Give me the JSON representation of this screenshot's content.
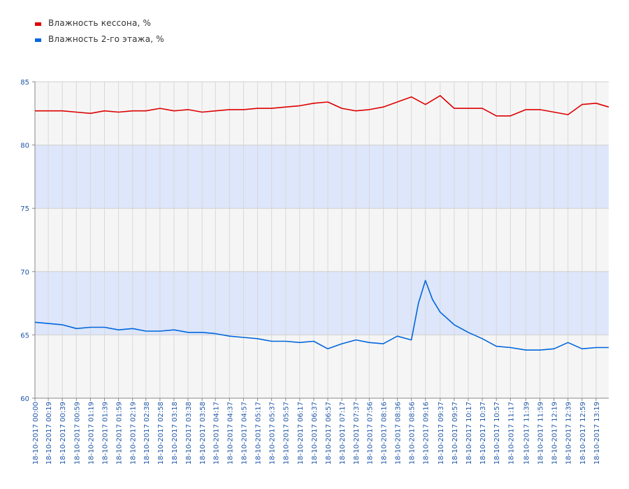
{
  "legend": {
    "items": [
      {
        "label": "Влажность кессона, %",
        "color": "#dd0000"
      },
      {
        "label": "Влажность 2-го этажа, %",
        "color": "#0066dd"
      }
    ]
  },
  "chart_data": {
    "type": "line",
    "ylim": [
      60,
      85
    ],
    "yticks": [
      60,
      65,
      70,
      75,
      80,
      85
    ],
    "bands": [
      {
        "from": 65,
        "to": 70,
        "color": "#dde6fa"
      },
      {
        "from": 75,
        "to": 80,
        "color": "#dde6fa"
      }
    ],
    "background": "#f5f5f5",
    "grid": true,
    "xlim_minutes": [
      0,
      817
    ],
    "x_tick_labels": [
      "18-10-2017 00:00",
      "18-10-2017 00:19",
      "18-10-2017 00:39",
      "18-10-2017 00:59",
      "18-10-2017 01:19",
      "18-10-2017 01:39",
      "18-10-2017 01:59",
      "18-10-2017 02:19",
      "18-10-2017 02:38",
      "18-10-2017 02:58",
      "18-10-2017 03:18",
      "18-10-2017 03:38",
      "18-10-2017 03:58",
      "18-10-2017 04:17",
      "18-10-2017 04:37",
      "18-10-2017 04:57",
      "18-10-2017 05:17",
      "18-10-2017 05:37",
      "18-10-2017 05:57",
      "18-10-2017 06:17",
      "18-10-2017 06:37",
      "18-10-2017 06:57",
      "18-10-2017 07:17",
      "18-10-2017 07:37",
      "18-10-2017 07:56",
      "18-10-2017 08:16",
      "18-10-2017 08:36",
      "18-10-2017 08:56",
      "18-10-2017 09:16",
      "18-10-2017 09:37",
      "18-10-2017 09:57",
      "18-10-2017 10:17",
      "18-10-2017 10:37",
      "18-10-2017 10:57",
      "18-10-2017 11:17",
      "18-10-2017 11:39",
      "18-10-2017 11:59",
      "18-10-2017 12:19",
      "18-10-2017 12:39",
      "18-10-2017 12:59",
      "18-10-2017 13:19"
    ],
    "series": [
      {
        "name": "Влажность кессона, %",
        "color": "#dd0000",
        "x": [
          "18-10-2017 00:00",
          "18-10-2017 00:19",
          "18-10-2017 00:39",
          "18-10-2017 00:59",
          "18-10-2017 01:19",
          "18-10-2017 01:39",
          "18-10-2017 01:59",
          "18-10-2017 02:19",
          "18-10-2017 02:38",
          "18-10-2017 02:58",
          "18-10-2017 03:18",
          "18-10-2017 03:38",
          "18-10-2017 03:58",
          "18-10-2017 04:17",
          "18-10-2017 04:37",
          "18-10-2017 04:57",
          "18-10-2017 05:17",
          "18-10-2017 05:37",
          "18-10-2017 05:57",
          "18-10-2017 06:17",
          "18-10-2017 06:37",
          "18-10-2017 06:57",
          "18-10-2017 07:17",
          "18-10-2017 07:37",
          "18-10-2017 07:56",
          "18-10-2017 08:16",
          "18-10-2017 08:36",
          "18-10-2017 08:56",
          "18-10-2017 09:16",
          "18-10-2017 09:37",
          "18-10-2017 09:57",
          "18-10-2017 10:17",
          "18-10-2017 10:37",
          "18-10-2017 10:57",
          "18-10-2017 11:17",
          "18-10-2017 11:39",
          "18-10-2017 11:59",
          "18-10-2017 12:19",
          "18-10-2017 12:39",
          "18-10-2017 12:59",
          "18-10-2017 13:19",
          "18-10-2017 13:37"
        ],
        "y": [
          82.7,
          82.7,
          82.7,
          82.6,
          82.5,
          82.7,
          82.6,
          82.7,
          82.7,
          82.9,
          82.7,
          82.8,
          82.6,
          82.7,
          82.8,
          82.8,
          82.9,
          82.9,
          83.0,
          83.1,
          83.3,
          83.4,
          82.9,
          82.7,
          82.8,
          83.0,
          83.4,
          83.8,
          83.2,
          83.9,
          82.9,
          82.9,
          82.9,
          82.3,
          82.3,
          82.8,
          82.8,
          82.6,
          82.4,
          83.2,
          83.3,
          83.0
        ]
      },
      {
        "name": "Влажность 2-го этажа, %",
        "color": "#0066dd",
        "x": [
          "18-10-2017 00:00",
          "18-10-2017 00:19",
          "18-10-2017 00:39",
          "18-10-2017 00:59",
          "18-10-2017 01:19",
          "18-10-2017 01:39",
          "18-10-2017 01:59",
          "18-10-2017 02:19",
          "18-10-2017 02:38",
          "18-10-2017 02:58",
          "18-10-2017 03:18",
          "18-10-2017 03:38",
          "18-10-2017 03:58",
          "18-10-2017 04:17",
          "18-10-2017 04:37",
          "18-10-2017 04:57",
          "18-10-2017 05:17",
          "18-10-2017 05:37",
          "18-10-2017 05:57",
          "18-10-2017 06:17",
          "18-10-2017 06:37",
          "18-10-2017 06:57",
          "18-10-2017 07:17",
          "18-10-2017 07:37",
          "18-10-2017 07:56",
          "18-10-2017 08:16",
          "18-10-2017 08:36",
          "18-10-2017 08:56",
          "18-10-2017 09:06",
          "18-10-2017 09:16",
          "18-10-2017 09:26",
          "18-10-2017 09:37",
          "18-10-2017 09:57",
          "18-10-2017 10:17",
          "18-10-2017 10:37",
          "18-10-2017 10:57",
          "18-10-2017 11:17",
          "18-10-2017 11:39",
          "18-10-2017 11:59",
          "18-10-2017 12:19",
          "18-10-2017 12:39",
          "18-10-2017 12:59",
          "18-10-2017 13:19",
          "18-10-2017 13:37"
        ],
        "y": [
          66.0,
          65.9,
          65.8,
          65.5,
          65.6,
          65.6,
          65.4,
          65.5,
          65.3,
          65.3,
          65.4,
          65.2,
          65.2,
          65.1,
          64.9,
          64.8,
          64.7,
          64.5,
          64.5,
          64.4,
          64.5,
          63.9,
          64.3,
          64.6,
          64.4,
          64.3,
          64.9,
          64.6,
          67.5,
          69.3,
          67.8,
          66.8,
          65.8,
          65.2,
          64.7,
          64.1,
          64.0,
          63.8,
          63.8,
          63.9,
          64.4,
          63.9,
          64.0,
          64.0
        ]
      }
    ]
  }
}
